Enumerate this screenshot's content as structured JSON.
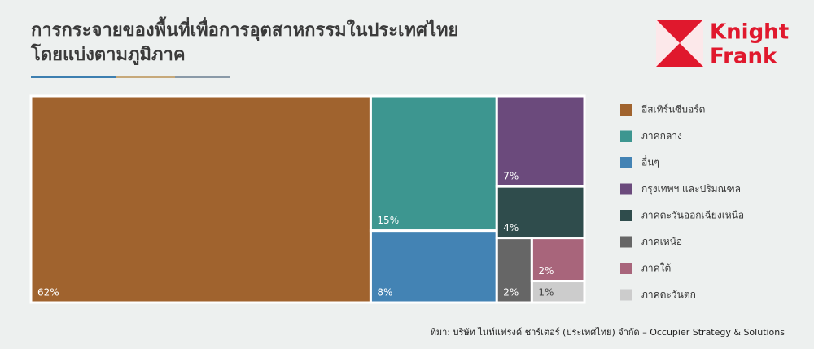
{
  "title_lines": [
    "การกระจายของพื้นที่เพื่อการอุตสาหกรรมในประเทศไทย",
    "โดยแบ่งตามภูมิภาค"
  ],
  "logo": [
    "Knight",
    "Frank"
  ],
  "source": "ที่มา: บริษัท ไนท์แฟรงค์ ชาร์เตอร์ (ประเทศไทย) จำกัด – Occupier Strategy & Solutions",
  "chart_data": {
    "type": "treemap",
    "categories": [
      "อีสเทิร์นซีบอร์ด",
      "ภาคกลาง",
      "อื่นๆ",
      "กรุงเทพฯ และปริมณฑล",
      "ภาคตะวันออกเฉียงเหนือ",
      "ภาคเหนือ",
      "ภาคใต้",
      "ภาคตะวันตก"
    ],
    "values": [
      62,
      15,
      8,
      7,
      4,
      2,
      2,
      1
    ],
    "value_labels": [
      "62%",
      "15%",
      "8%",
      "7%",
      "4%",
      "2%",
      "2%",
      "1%"
    ],
    "colors": [
      "#a0632e",
      "#3d9690",
      "#4383b4",
      "#6b4a7c",
      "#2f4c4c",
      "#666666",
      "#a8657b",
      "#cccccc"
    ]
  }
}
